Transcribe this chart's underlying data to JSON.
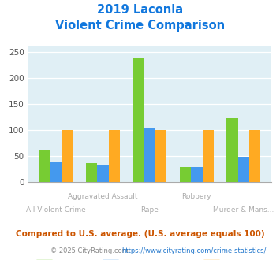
{
  "title_line1": "2019 Laconia",
  "title_line2": "Violent Crime Comparison",
  "categories": [
    "All Violent Crime",
    "Aggravated Assault",
    "Rape",
    "Robbery",
    "Murder & Mans..."
  ],
  "laconia": [
    60,
    36,
    240,
    29,
    123
  ],
  "new_hampshire": [
    40,
    34,
    103,
    29,
    49
  ],
  "national": [
    100,
    100,
    100,
    100,
    100
  ],
  "color_laconia": "#77cc33",
  "color_nh": "#4499ee",
  "color_national": "#ffaa22",
  "ylim": [
    0,
    260
  ],
  "yticks": [
    0,
    50,
    100,
    150,
    200,
    250
  ],
  "bg_color": "#e0eff5",
  "title_color": "#1177dd",
  "xlabel_color_top": "#aaaaaa",
  "xlabel_color_bot": "#aaaaaa",
  "legend_label_color": "#334466",
  "footer_text": "Compared to U.S. average. (U.S. average equals 100)",
  "credit_text_left": "© 2025 CityRating.com - ",
  "credit_text_link": "https://www.cityrating.com/crime-statistics/",
  "footer_color": "#cc5500",
  "credit_color": "#888888",
  "credit_link_color": "#2277cc"
}
